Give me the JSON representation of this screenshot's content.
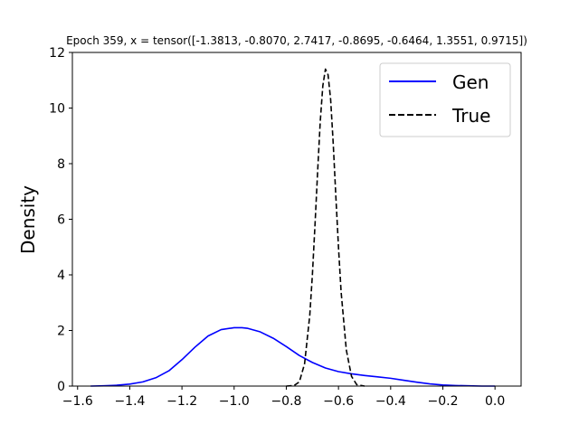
{
  "chart_data": {
    "type": "line",
    "title": "Epoch 359, x = tensor([-1.3813, -0.8070,  2.7417, -0.8695, -0.6464,  1.3551,  0.9715])",
    "xlabel": "",
    "ylabel": "Density",
    "xlim": [
      -1.62,
      0.1
    ],
    "ylim": [
      0,
      12
    ],
    "xticks": [
      -1.6,
      -1.4,
      -1.2,
      -1.0,
      -0.8,
      -0.6,
      -0.4,
      -0.2,
      0.0
    ],
    "xtick_labels": [
      "−1.6",
      "−1.4",
      "−1.2",
      "−1.0",
      "−0.8",
      "−0.6",
      "−0.4",
      "−0.2",
      "0.0"
    ],
    "yticks": [
      0,
      2,
      4,
      6,
      8,
      10,
      12
    ],
    "ytick_labels": [
      "0",
      "2",
      "4",
      "6",
      "8",
      "10",
      "12"
    ],
    "legend_position": "top-right",
    "series": [
      {
        "name": "Gen",
        "color": "#0000ff",
        "style": "solid",
        "x": [
          -1.55,
          -1.5,
          -1.45,
          -1.4,
          -1.35,
          -1.3,
          -1.25,
          -1.2,
          -1.15,
          -1.1,
          -1.05,
          -1.0,
          -0.97,
          -0.95,
          -0.9,
          -0.85,
          -0.8,
          -0.75,
          -0.7,
          -0.65,
          -0.6,
          -0.55,
          -0.5,
          -0.45,
          -0.4,
          -0.35,
          -0.3,
          -0.25,
          -0.2,
          -0.15,
          -0.1,
          -0.05,
          0.0
        ],
        "y": [
          0.0,
          0.01,
          0.03,
          0.07,
          0.15,
          0.3,
          0.55,
          0.95,
          1.4,
          1.8,
          2.03,
          2.1,
          2.1,
          2.08,
          1.95,
          1.72,
          1.42,
          1.1,
          0.85,
          0.65,
          0.52,
          0.44,
          0.38,
          0.33,
          0.28,
          0.21,
          0.14,
          0.08,
          0.04,
          0.02,
          0.01,
          0.0,
          0.0
        ]
      },
      {
        "name": "True",
        "color": "#000000",
        "style": "dashed",
        "x": [
          -0.8,
          -0.77,
          -0.75,
          -0.73,
          -0.71,
          -0.7,
          -0.69,
          -0.68,
          -0.67,
          -0.66,
          -0.65,
          -0.64,
          -0.63,
          -0.62,
          -0.61,
          -0.6,
          -0.59,
          -0.57,
          -0.55,
          -0.53,
          -0.5
        ],
        "y": [
          0.0,
          0.02,
          0.15,
          0.8,
          2.55,
          4.0,
          5.8,
          7.7,
          9.5,
          10.8,
          11.4,
          11.2,
          10.3,
          8.7,
          6.8,
          5.0,
          3.4,
          1.3,
          0.35,
          0.05,
          0.0
        ]
      }
    ]
  }
}
